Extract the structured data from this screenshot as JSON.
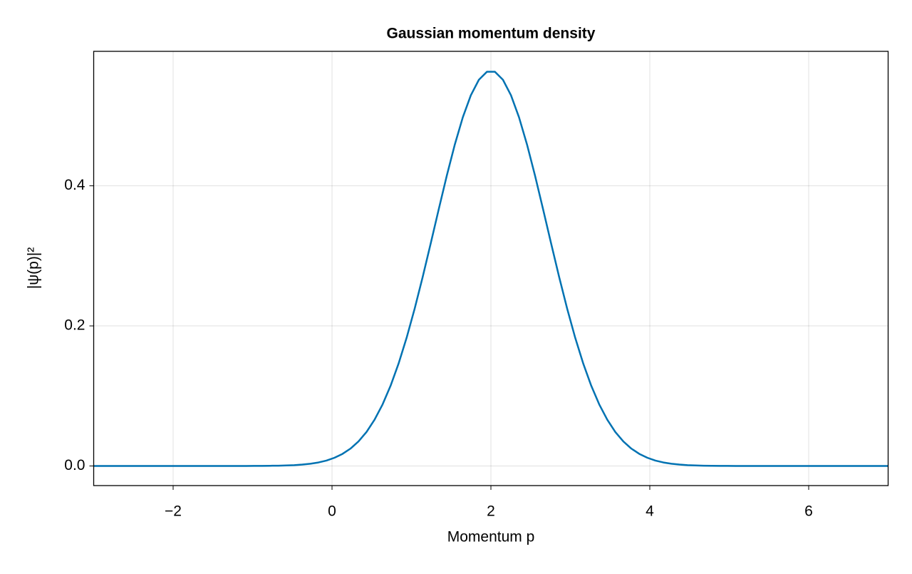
{
  "chart_data": {
    "type": "line",
    "title": "Gaussian momentum density",
    "xlabel": "Momentum p",
    "ylabel": "|ψ(p)|²",
    "xlim": [
      -3,
      7
    ],
    "ylim": [
      -0.028,
      0.592
    ],
    "xticks": [
      {
        "value": -2,
        "label": "−2"
      },
      0,
      2,
      4,
      6
    ],
    "yticks": [
      {
        "value": 0,
        "label": "0.0"
      },
      0.2,
      0.4
    ],
    "grid": true,
    "x": [
      -3,
      -2.899,
      -2.798,
      -2.697,
      -2.596,
      -2.495,
      -2.3939,
      -2.2929,
      -2.1919,
      -2.0909,
      -1.9899,
      -1.8889,
      -1.7879,
      -1.6869,
      -1.5859,
      -1.4848,
      -1.3838,
      -1.2828,
      -1.1818,
      -1.0808,
      -0.9798,
      -0.8788,
      -0.7778,
      -0.6768,
      -0.5758,
      -0.4747,
      -0.3737,
      -0.2727,
      -0.1717,
      -0.0707,
      0.0303,
      0.1313,
      0.2323,
      0.3333,
      0.4343,
      0.5354,
      0.6364,
      0.7374,
      0.8384,
      0.9394,
      1.0404,
      1.1414,
      1.2424,
      1.3434,
      1.4444,
      1.5455,
      1.6465,
      1.7475,
      1.8485,
      1.9495,
      2.0505,
      2.1515,
      2.2525,
      2.3535,
      2.4545,
      2.5556,
      2.6566,
      2.7576,
      2.8586,
      2.9596,
      3.0606,
      3.1616,
      3.2626,
      3.3636,
      3.4646,
      3.5657,
      3.6667,
      3.7677,
      3.8687,
      3.9697,
      4.0707,
      4.1717,
      4.2727,
      4.3737,
      4.4747,
      4.5758,
      4.6768,
      4.7778,
      4.8788,
      4.9798,
      5.0808,
      5.1818,
      5.2828,
      5.3838,
      5.4848,
      5.5859,
      5.6869,
      5.7879,
      5.8889,
      5.9899,
      6.0909,
      6.1919,
      6.2929,
      6.3939,
      6.4949,
      6.596,
      6.697,
      6.798,
      6.899,
      7
    ],
    "series": [
      {
        "color": "#0072b2",
        "values": [
          0,
          0,
          0,
          0,
          0,
          0,
          0,
          0,
          0,
          0,
          0,
          0,
          0,
          0,
          0,
          0,
          0,
          0,
          0,
          0,
          0.0001,
          0.0001,
          0.0003,
          0.0004,
          0.0007,
          0.0012,
          0.002,
          0.0032,
          0.005,
          0.0077,
          0.0117,
          0.0172,
          0.0248,
          0.0351,
          0.0486,
          0.0661,
          0.0879,
          0.1146,
          0.1464,
          0.1832,
          0.2247,
          0.27,
          0.3178,
          0.3666,
          0.4144,
          0.4589,
          0.4979,
          0.5293,
          0.5514,
          0.5628,
          0.5628,
          0.5514,
          0.5293,
          0.4979,
          0.4589,
          0.4144,
          0.3666,
          0.3178,
          0.27,
          0.2247,
          0.1832,
          0.1464,
          0.1146,
          0.0879,
          0.0661,
          0.0486,
          0.0351,
          0.0248,
          0.0172,
          0.0117,
          0.0077,
          0.005,
          0.0032,
          0.002,
          0.0012,
          0.0007,
          0.0004,
          0.0003,
          0.0001,
          0.0001,
          0,
          0,
          0,
          0,
          0,
          0,
          0,
          0,
          0,
          0,
          0,
          0,
          0,
          0,
          0,
          0,
          0,
          0,
          0,
          0
        ]
      }
    ]
  }
}
